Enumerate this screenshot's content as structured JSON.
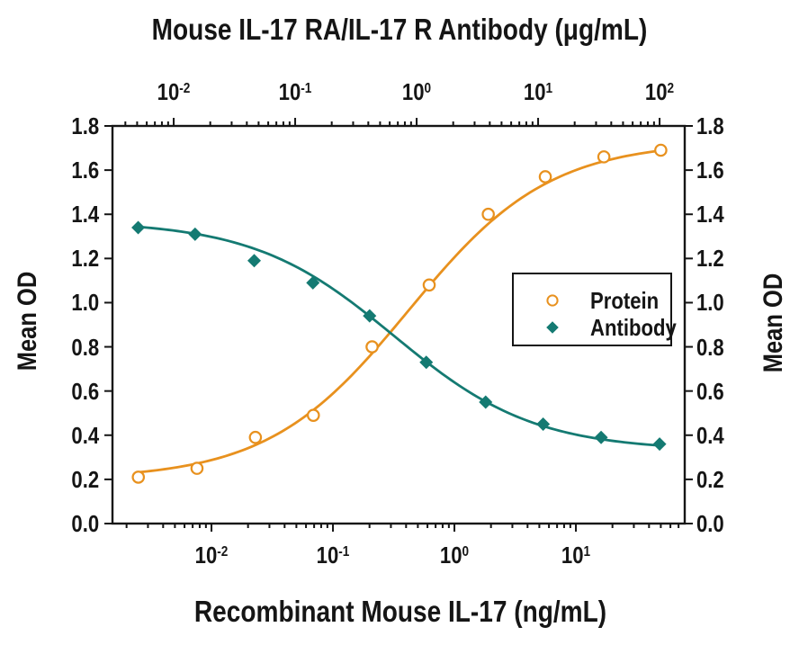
{
  "chart_data": {
    "type": "scatter",
    "title": "Mouse IL-17 RA/IL-17 R Antibody (μg/mL)",
    "top_axis": {
      "scale": "log",
      "tick_exponents": [
        -2,
        -1,
        0,
        1,
        2
      ],
      "range_log10": [
        -2.504,
        2.207
      ]
    },
    "bottom_axis": {
      "label": "Recombinant Mouse IL-17 (ng/mL)",
      "scale": "log",
      "tick_exponents": [
        -2,
        -1,
        0,
        1
      ],
      "range_log10": [
        -2.815,
        1.896
      ]
    },
    "left_axis": {
      "label": "Mean OD",
      "tick_labels": [
        "0.0",
        "0.2",
        "0.4",
        "0.6",
        "0.8",
        "1.0",
        "1.2",
        "1.4",
        "1.6",
        "1.8"
      ],
      "range": [
        0,
        1.8
      ]
    },
    "right_axis": {
      "label": "Mean OD",
      "tick_labels": [
        "0.0",
        "0.2",
        "0.4",
        "0.6",
        "0.8",
        "1.0",
        "1.2",
        "1.4",
        "1.6",
        "1.8"
      ],
      "range": [
        0,
        1.8
      ]
    },
    "series": [
      {
        "name": "Protein",
        "axis": "bottom",
        "marker": "open-circle",
        "color": "#E8911E",
        "x": [
          0.0025,
          0.0076,
          0.023,
          0.069,
          0.21,
          0.62,
          1.9,
          5.6,
          17,
          50
        ],
        "y": [
          0.21,
          0.25,
          0.39,
          0.49,
          0.8,
          1.08,
          1.4,
          1.57,
          1.66,
          1.69
        ],
        "fit": {
          "type": "4PL",
          "bottom": 0.2,
          "top": 1.73,
          "ec50": 0.42,
          "hill": 0.75,
          "direction": "increasing"
        }
      },
      {
        "name": "Antibody",
        "axis": "top",
        "marker": "filled-diamond",
        "color": "#147A72",
        "x": [
          0.0051,
          0.015,
          0.046,
          0.14,
          0.41,
          1.2,
          3.7,
          11,
          33,
          100
        ],
        "y": [
          1.34,
          1.31,
          1.19,
          1.09,
          0.94,
          0.73,
          0.55,
          0.45,
          0.39,
          0.36
        ],
        "fit": {
          "type": "4PL",
          "bottom": 0.33,
          "top": 1.37,
          "ec50": 0.65,
          "hill": 0.75,
          "direction": "decreasing"
        }
      }
    ],
    "legend": {
      "position": "middle-right",
      "border": true
    }
  }
}
